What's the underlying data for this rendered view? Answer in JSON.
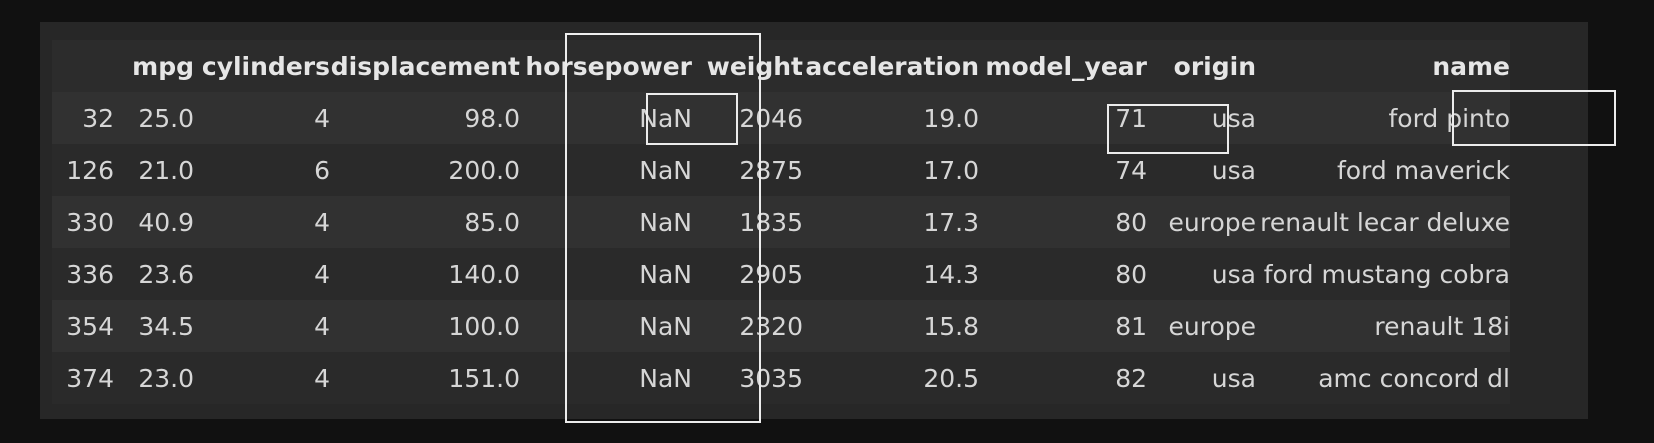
{
  "table": {
    "columns": [
      "",
      "mpg",
      "cylinders",
      "displacement",
      "horsepower",
      "weight",
      "acceleration",
      "model_year",
      "origin",
      "name"
    ],
    "rows": [
      [
        "32",
        "25.0",
        "4",
        "98.0",
        "NaN",
        "2046",
        "19.0",
        "71",
        "usa",
        "ford pinto"
      ],
      [
        "126",
        "21.0",
        "6",
        "200.0",
        "NaN",
        "2875",
        "17.0",
        "74",
        "usa",
        "ford maverick"
      ],
      [
        "330",
        "40.9",
        "4",
        "85.0",
        "NaN",
        "1835",
        "17.3",
        "80",
        "europe",
        "renault lecar deluxe"
      ],
      [
        "336",
        "23.6",
        "4",
        "140.0",
        "NaN",
        "2905",
        "14.3",
        "80",
        "usa",
        "ford mustang cobra"
      ],
      [
        "354",
        "34.5",
        "4",
        "100.0",
        "NaN",
        "2320",
        "15.8",
        "81",
        "europe",
        "renault 18i"
      ],
      [
        "374",
        "23.0",
        "4",
        "151.0",
        "NaN",
        "3035",
        "20.5",
        "82",
        "usa",
        "amc concord dl"
      ]
    ]
  }
}
